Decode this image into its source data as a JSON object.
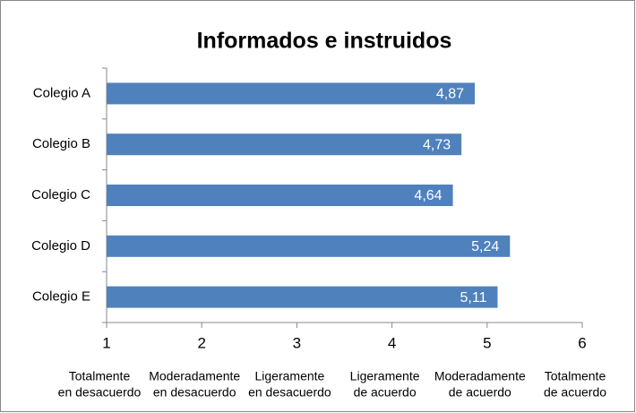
{
  "chart_data": {
    "type": "bar",
    "orientation": "horizontal",
    "title": "Informados e instruidos",
    "categories": [
      "Colegio A",
      "Colegio B",
      "Colegio C",
      "Colegio D",
      "Colegio E"
    ],
    "values": [
      4.87,
      4.73,
      4.64,
      5.24,
      5.11
    ],
    "value_labels": [
      "4,87",
      "4,73",
      "4,64",
      "5,24",
      "5,11"
    ],
    "color": "#4f81bd",
    "xlim": [
      1,
      6
    ],
    "xticks": [
      1,
      2,
      3,
      4,
      5,
      6
    ],
    "xtick_descriptions": [
      [
        "Totalmente",
        "en desacuerdo"
      ],
      [
        "Moderadamente",
        "en desacuerdo"
      ],
      [
        "Ligeramente",
        "en desacuerdo"
      ],
      [
        "Ligeramente",
        "de acuerdo"
      ],
      [
        "Moderadamente",
        "de acuerdo"
      ],
      [
        "Totalmente",
        "de acuerdo"
      ]
    ],
    "grid": false
  }
}
